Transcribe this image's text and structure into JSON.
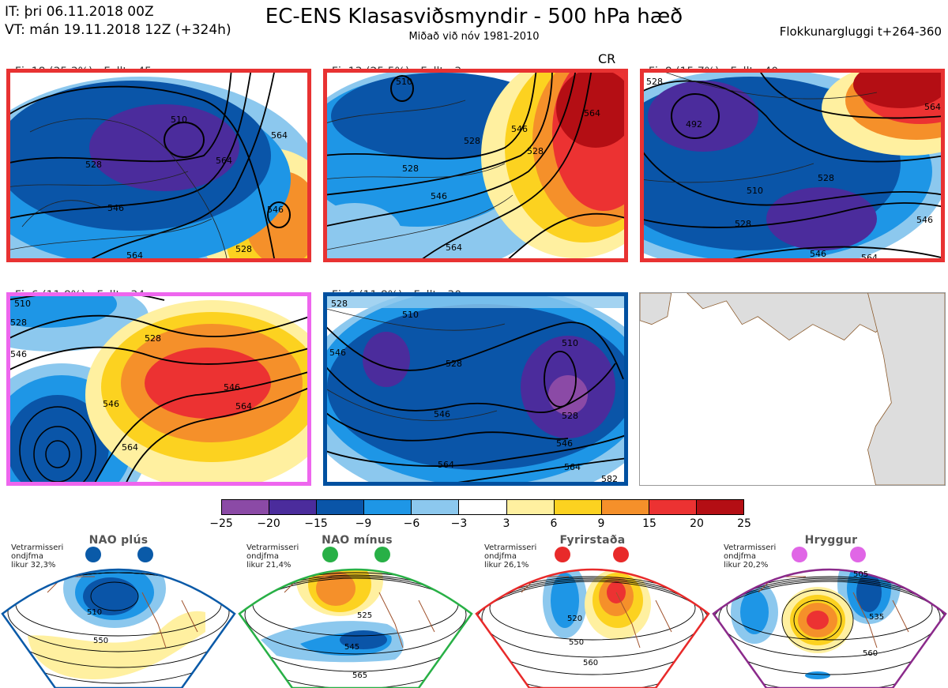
{
  "header": {
    "it_line": "IT: þri 06.11.2018 00Z",
    "vt_line": "VT: mán 19.11.2018 12Z  (+324h)",
    "title": "EC-ENS Klasasviðsmyndir - 500 hPa hæð",
    "subtitle": "Miðað við nóv 1981-2010",
    "window": "Flokkunargluggi t+264-360"
  },
  "panels": [
    {
      "count": "Fj. 18 (35.3%)",
      "rep": "Fulltr. 45",
      "border": "#e83232",
      "contours": [
        "510",
        "528",
        "546",
        "564",
        "564",
        "546",
        "564",
        "528"
      ]
    },
    {
      "count": "Fj. 13 (25.5%)",
      "rep": "Fulltr. 3",
      "tag": "CR",
      "border": "#e83232",
      "contours": [
        "528",
        "510",
        "528",
        "546",
        "546",
        "564",
        "564",
        "528"
      ]
    },
    {
      "count": "Fj. 8 (15.7%)",
      "rep": "Fulltr. 40",
      "border": "#e83232",
      "contours": [
        "492",
        "510",
        "528",
        "528",
        "546",
        "546",
        "564",
        "564",
        "528"
      ]
    },
    {
      "count": "Fj. 6 (11.8%)",
      "rep": "Fulltr. 34",
      "border": "#ee66ee",
      "contours": [
        "528",
        "546",
        "564",
        "546",
        "528",
        "510",
        "546",
        "564"
      ]
    },
    {
      "count": "Fj. 6 (11.8%)",
      "rep": "Fulltr. 30",
      "border": "#0050a0",
      "contours": [
        "510",
        "528",
        "546",
        "564",
        "510",
        "528",
        "546",
        "564",
        "528",
        "546",
        "582"
      ]
    }
  ],
  "colorbar": {
    "colors": [
      "#8b4aa6",
      "#4b2c9c",
      "#0a55a8",
      "#1e96e6",
      "#8cc8ee",
      "#ffffff",
      "#fff0a0",
      "#fcd220",
      "#f5902a",
      "#ec3232",
      "#b40e14"
    ],
    "ticks": [
      "−25",
      "−20",
      "−15",
      "−9",
      "−6",
      "−3",
      "3",
      "6",
      "9",
      "15",
      "20",
      "25"
    ]
  },
  "regimes": [
    {
      "title": "NAO plús",
      "note": [
        "Vetrarmisseri",
        "ondjfma",
        "likur 32,3%"
      ],
      "color": "#0a5aa8",
      "labels": [
        "510",
        "550"
      ]
    },
    {
      "title": "NAO mínus",
      "note": [
        "Vetrarmisseri",
        "ondjfma",
        "likur 21,4%"
      ],
      "color": "#28b046",
      "labels": [
        "525",
        "545",
        "565"
      ]
    },
    {
      "title": "Fyrirstaða",
      "note": [
        "Vetrarmisseri",
        "ondjfma",
        "likur 26,1%"
      ],
      "color": "#e82a2a",
      "labels": [
        "520",
        "550",
        "560"
      ]
    },
    {
      "title": "Hryggur",
      "note": [
        "Vetrarmisseri",
        "ondjfma",
        "likur 20,2%"
      ],
      "color": "#e066e6",
      "labels": [
        "505",
        "535",
        "560"
      ]
    }
  ]
}
